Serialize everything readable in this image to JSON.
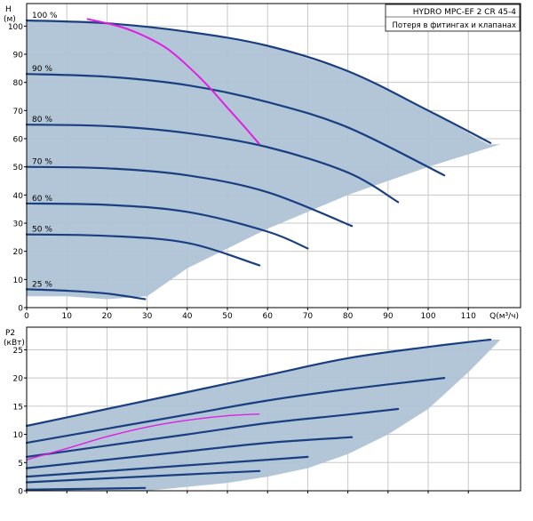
{
  "colors": {
    "background": "#ffffff",
    "grid": "#c8c8c8",
    "frame": "#000000",
    "envelope_fill": "#aec3d6",
    "speed_curve": "#1a3f80",
    "system_curve": "#e020e0"
  },
  "chart_data": [
    {
      "type": "line",
      "panel": "head",
      "title": "HYDRO MPC-EF 2 CR 45-4",
      "subtitle": "Потеря в фитингах и клапанах",
      "ylabel": "H",
      "yunit": "(м)",
      "xlabel": "Q(м³/ч)",
      "xlim": [
        0,
        123
      ],
      "ylim": [
        0,
        108
      ],
      "xticks": [
        0,
        10,
        20,
        30,
        40,
        50,
        60,
        70,
        80,
        90,
        100,
        110
      ],
      "xtick_labels": [
        "0",
        "10",
        "20",
        "30",
        "40",
        "50",
        "60",
        "70",
        "80",
        "90",
        "100",
        "110"
      ],
      "yticks": [
        0,
        10,
        20,
        30,
        40,
        50,
        60,
        70,
        80,
        90,
        100
      ],
      "ytick_labels": [
        "0",
        "10",
        "20",
        "30",
        "40",
        "50",
        "60",
        "70",
        "80",
        "90",
        "100"
      ],
      "grid": true,
      "envelope": {
        "x": [
          0,
          0,
          20,
          40,
          60,
          80,
          100,
          115,
          118,
          100,
          80,
          60,
          40,
          30,
          20,
          10,
          0
        ],
        "y": [
          4,
          102,
          101,
          98,
          93,
          84,
          70,
          58,
          58,
          50,
          40,
          28,
          14,
          4,
          3,
          4,
          4
        ]
      },
      "series": [
        {
          "name": "100 %",
          "x": [
            0,
            20,
            40,
            60,
            80,
            100,
            115.5
          ],
          "y": [
            102,
            101,
            98,
            93,
            84,
            70,
            58.5
          ]
        },
        {
          "name": "90 %",
          "x": [
            0,
            20,
            40,
            60,
            80,
            104
          ],
          "y": [
            83,
            82,
            79,
            73,
            64,
            47
          ]
        },
        {
          "name": "80 %",
          "x": [
            0,
            20,
            40,
            60,
            80,
            92.5
          ],
          "y": [
            65,
            64.5,
            62,
            57,
            48,
            37.5
          ]
        },
        {
          "name": "70 %",
          "x": [
            0,
            20,
            40,
            60,
            81
          ],
          "y": [
            50,
            49.5,
            47,
            41,
            29
          ]
        },
        {
          "name": "60 %",
          "x": [
            0,
            20,
            40,
            60,
            70
          ],
          "y": [
            37,
            36.5,
            34,
            27,
            21
          ]
        },
        {
          "name": "50 %",
          "x": [
            0,
            20,
            40,
            58
          ],
          "y": [
            26,
            25.5,
            23,
            15
          ]
        },
        {
          "name": "25 %",
          "x": [
            0,
            10,
            20,
            29.5
          ],
          "y": [
            6.5,
            6,
            5,
            3
          ]
        }
      ],
      "system_curve": {
        "x": [
          15,
          20,
          25,
          30,
          35,
          40,
          45,
          50,
          55,
          58
        ],
        "y": [
          102.5,
          101,
          99,
          96,
          92,
          86,
          79,
          71,
          63,
          58
        ]
      }
    },
    {
      "type": "line",
      "panel": "power",
      "ylabel": "P2",
      "yunit": "(кВт)",
      "xlim": [
        0,
        123
      ],
      "ylim": [
        0,
        29
      ],
      "xticks": [
        0,
        10,
        20,
        30,
        40,
        50,
        60,
        70,
        80,
        90,
        100,
        110
      ],
      "yticks": [
        0,
        5,
        10,
        15,
        20,
        25
      ],
      "ytick_labels": [
        "0",
        "5",
        "10",
        "15",
        "20",
        "25"
      ],
      "grid": true,
      "envelope": {
        "x": [
          0,
          0,
          20,
          40,
          60,
          80,
          100,
          115.5,
          118,
          110,
          100,
          90,
          80,
          70,
          60,
          50,
          30,
          0
        ],
        "y": [
          0,
          11.5,
          14.5,
          17.5,
          20.5,
          23.5,
          25.5,
          26.8,
          26.8,
          21,
          14.5,
          10,
          6.5,
          4,
          2.5,
          1.4,
          0,
          0
        ]
      },
      "series": [
        {
          "name": "100 %",
          "x": [
            0,
            20,
            40,
            60,
            80,
            100,
            115.5
          ],
          "y": [
            11.5,
            14.5,
            17.5,
            20.5,
            23.5,
            25.5,
            26.8
          ]
        },
        {
          "name": "90 %",
          "x": [
            0,
            20,
            40,
            60,
            80,
            104
          ],
          "y": [
            8.5,
            11,
            13.5,
            16,
            18,
            20
          ]
        },
        {
          "name": "80 %",
          "x": [
            0,
            20,
            40,
            60,
            80,
            92.5
          ],
          "y": [
            6,
            8,
            10,
            12,
            13.5,
            14.5
          ]
        },
        {
          "name": "70 %",
          "x": [
            0,
            20,
            40,
            60,
            81
          ],
          "y": [
            4,
            5.5,
            7,
            8.5,
            9.5
          ]
        },
        {
          "name": "60 %",
          "x": [
            0,
            20,
            40,
            60,
            70
          ],
          "y": [
            2.5,
            3.5,
            4.5,
            5.5,
            6
          ]
        },
        {
          "name": "50 %",
          "x": [
            0,
            20,
            40,
            58
          ],
          "y": [
            1.5,
            2.2,
            2.9,
            3.5
          ]
        },
        {
          "name": "25 %",
          "x": [
            0,
            10,
            20,
            29.5
          ],
          "y": [
            0.2,
            0.3,
            0.4,
            0.5
          ]
        }
      ],
      "system_curve": {
        "x": [
          0,
          10,
          20,
          30,
          40,
          50,
          58
        ],
        "y": [
          5.5,
          7.5,
          9.6,
          11.3,
          12.5,
          13.3,
          13.6
        ]
      }
    }
  ]
}
